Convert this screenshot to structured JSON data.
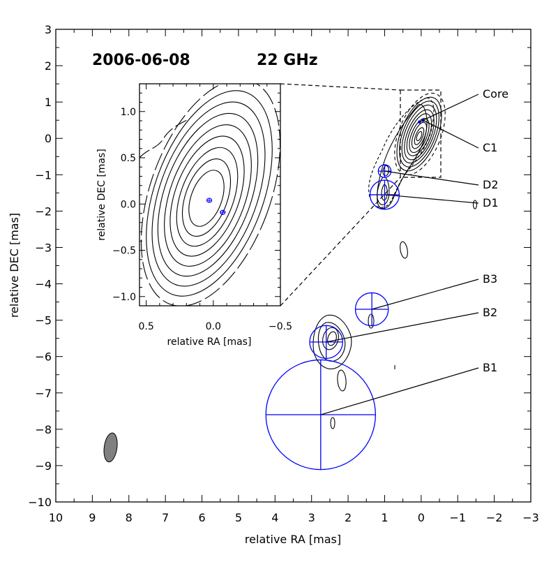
{
  "chart_data": {
    "type": "contour",
    "main": {
      "title_date": "2006-06-08",
      "title_freq": "22 GHz",
      "xlabel": "relative RA [mas]",
      "ylabel": "relative DEC [mas]",
      "xlim": [
        10,
        -3
      ],
      "ylim": [
        -10,
        3
      ],
      "xticks": [
        "10",
        "9",
        "8",
        "7",
        "6",
        "5",
        "4",
        "3",
        "2",
        "1",
        "0",
        "−1",
        "−2",
        "−3"
      ],
      "yticks": [
        "3",
        "2",
        "1",
        "0",
        "−1",
        "−2",
        "−3",
        "−4",
        "−5",
        "−6",
        "−7",
        "−8",
        "−9",
        "−10"
      ],
      "components": [
        {
          "label": "Core",
          "x": 0.05,
          "y": 0.45,
          "size": 0.02
        },
        {
          "label": "C1",
          "x": -0.05,
          "y": 0.5,
          "size": 0.02
        },
        {
          "label": "D2",
          "x": 1.0,
          "y": -0.9,
          "size": 0.35
        },
        {
          "label": "D1",
          "x": 1.0,
          "y": -1.55,
          "size": 0.8
        },
        {
          "label": "B3",
          "x": 1.35,
          "y": -4.7,
          "size": 0.9
        },
        {
          "label": "B2",
          "x": 2.6,
          "y": -5.6,
          "size": 0.9
        },
        {
          "label": "B1",
          "x": 2.75,
          "y": -7.6,
          "size": 3.0
        }
      ],
      "beam": {
        "x": 8.5,
        "y": -8.5,
        "major": 0.8,
        "minor": 0.35
      }
    },
    "inset": {
      "xlabel": "relative RA [mas]",
      "ylabel": "relative DEC [mas]",
      "xlim": [
        0.55,
        -0.5
      ],
      "ylim": [
        -1.1,
        1.3
      ],
      "xticks": [
        "0.5",
        "0.0",
        "−0.5"
      ],
      "yticks": [
        "1.0",
        "0.5",
        "0.0",
        "−0.5",
        "−1.0"
      ],
      "components": [
        {
          "label": "Core",
          "x": 0.03,
          "y": 0.04
        },
        {
          "label": "C1",
          "x": -0.07,
          "y": -0.09
        }
      ]
    },
    "component_color": "#0000ff"
  }
}
